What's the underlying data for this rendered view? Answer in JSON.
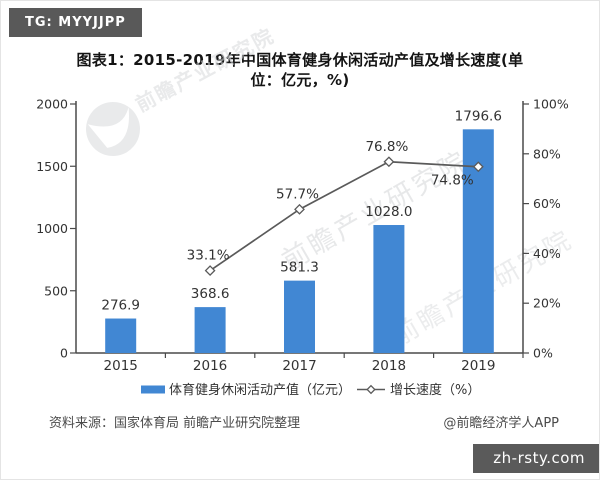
{
  "badges": {
    "tg": "TG: MYYJJPP",
    "site": "zh-rsty.com"
  },
  "title": {
    "line1": "图表1：2015-2019年中国体育健身休闲活动产值及增长速度(单",
    "line2": "位：亿元，%)"
  },
  "source": {
    "left": "资料来源：国家体育局 前瞻产业研究院整理",
    "right": "@前瞻经济学人APP"
  },
  "watermark": {
    "text": "前瞻产业研究院",
    "logo_text": "前瞻"
  },
  "chart_data": {
    "type": "bar",
    "title": "图表1：2015-2019年中国体育健身休闲活动产值及增长速度(单位：亿元，%)",
    "categories": [
      "2015",
      "2016",
      "2017",
      "2018",
      "2019"
    ],
    "series": [
      {
        "name": "体育健身休闲活动产值（亿元）",
        "type": "bar",
        "axis": "left",
        "values": [
          276.9,
          368.6,
          581.3,
          1028.0,
          1796.6
        ],
        "labels": [
          "276.9",
          "368.6",
          "581.3",
          "1028.0",
          "1796.6"
        ],
        "color": "#4187d3"
      },
      {
        "name": "增长速度（%）",
        "type": "line",
        "axis": "right",
        "values": [
          null,
          33.1,
          57.7,
          76.8,
          74.8
        ],
        "labels": [
          "",
          "33.1%",
          "57.7%",
          "76.8%",
          "74.8%"
        ],
        "label_pos": [
          "",
          "above",
          "above",
          "above",
          "below-left"
        ],
        "color": "#5a5a5a"
      }
    ],
    "left_axis": {
      "min": 0,
      "max": 2000,
      "ticks": [
        0,
        500,
        1000,
        1500,
        2000
      ]
    },
    "right_axis": {
      "min": 0,
      "max": 100,
      "tick_labels": [
        "0%",
        "20%",
        "40%",
        "60%",
        "80%",
        "100%"
      ],
      "tick_values": [
        0,
        20,
        40,
        60,
        80,
        100
      ]
    },
    "grid": false,
    "legend_position": "bottom",
    "colors": {
      "bar": "#4187d3",
      "line": "#5a5a5a",
      "axis": "#4a4a4a",
      "label_text": "#333333",
      "watermark": "#d8dadc"
    }
  }
}
